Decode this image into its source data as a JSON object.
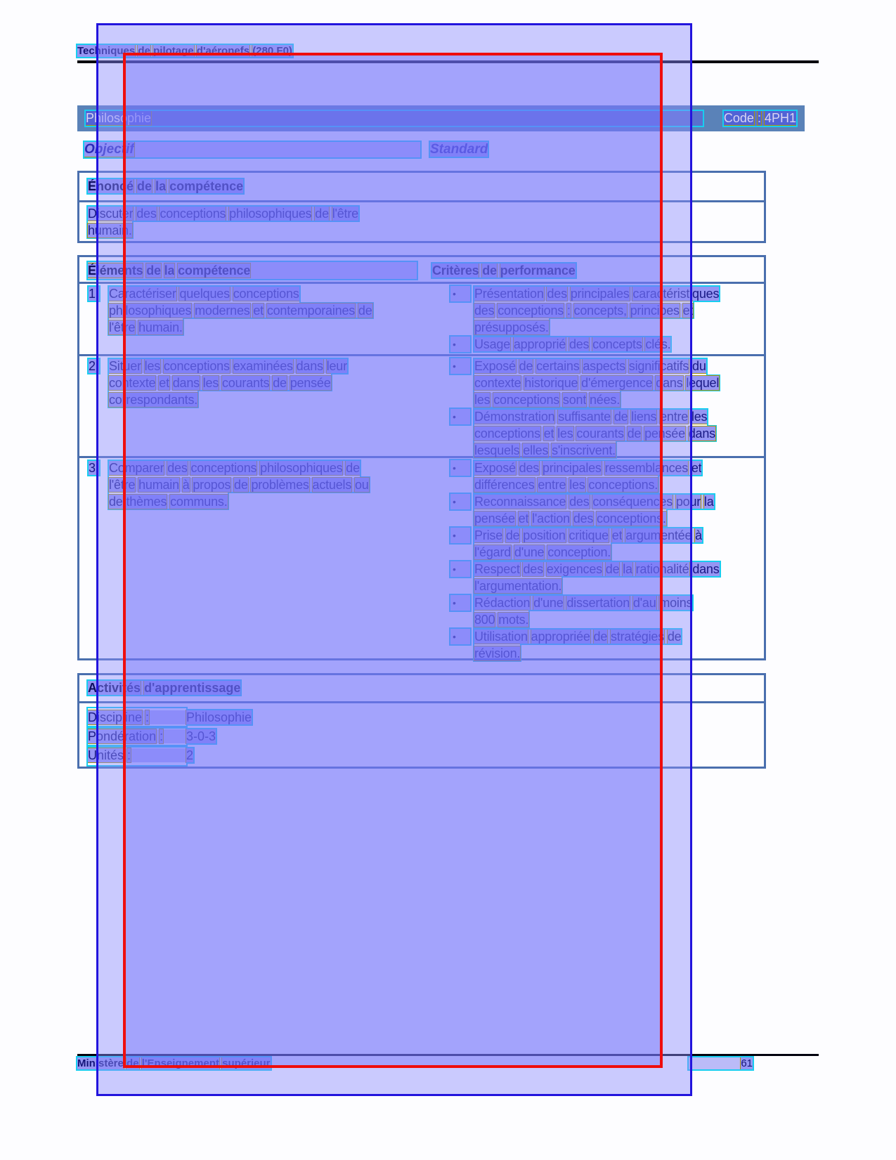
{
  "doc": {
    "header": "Techniques de pilotage d'aéronefs (280.F0)",
    "band": {
      "title": "Philosophie",
      "code": "Code : 4PH1"
    },
    "objectif_label": "Objectif",
    "standard_label": "Standard",
    "bullet": "•",
    "enonce": {
      "header": "Énoncé de la compétence",
      "body": "Discuter des conceptions philosophiques de l'être\nhumain."
    },
    "table": {
      "col1": "Éléments de la compétence",
      "col2": "Critères de performance",
      "rows": [
        {
          "num": "1.",
          "element": "Caractériser quelques conceptions\nphilosophiques modernes et contemporaines de\nl'être humain.",
          "criteria": [
            "Présentation des principales caractéristiques\ndes conceptions : concepts, principes et\nprésupposés.",
            "Usage approprié des concepts clés."
          ]
        },
        {
          "num": "2.",
          "element": "Situer les conceptions examinées dans leur\ncontexte et dans les courants de pensée\ncorrespondants.",
          "criteria": [
            "Exposé de certains aspects significatifs du\ncontexte historique d'émergence dans lequel\nles conceptions sont nées.",
            "Démonstration suffisante de liens entre les\nconceptions et les courants de pensée dans\nlesquels elles s'inscrivent."
          ]
        },
        {
          "num": "3.",
          "element": "Comparer des conceptions philosophiques de\nl'être humain à propos de problèmes actuels ou\nde thèmes communs.",
          "criteria": [
            "Exposé des principales ressemblances et\ndifférences entre les conceptions.",
            "Reconnaissance des conséquences pour la\npensée et l'action des conceptions.",
            "Prise de position critique et argumentée à\nl'égard d'une conception.",
            "Respect des exigences de la rationalité dans\nl'argumentation.",
            "Rédaction d'une dissertation d'au moins\n800 mots.",
            "Utilisation appropriée de stratégies de\nrévision."
          ]
        }
      ]
    },
    "activites": {
      "header": "Activités d'apprentissage",
      "fields": [
        {
          "label": "Discipline :",
          "value": "Philosophie"
        },
        {
          "label": "Pondération :",
          "value": "3-0-3"
        },
        {
          "label": "Unités :",
          "value": "2"
        }
      ]
    },
    "footer": {
      "left": "Ministère de l'Enseignement supérieur",
      "page": "61"
    },
    "colors": {
      "accent_cyan": "#18cdf0",
      "word_box_olive": "#a89410",
      "overlay_purple": "#8c8cfc",
      "overlay_red_border": "#ef0d0d",
      "overlay_blue_border": "#2214dd",
      "band_blue": "#5a82b8",
      "table_border": "#4a6fae"
    }
  }
}
